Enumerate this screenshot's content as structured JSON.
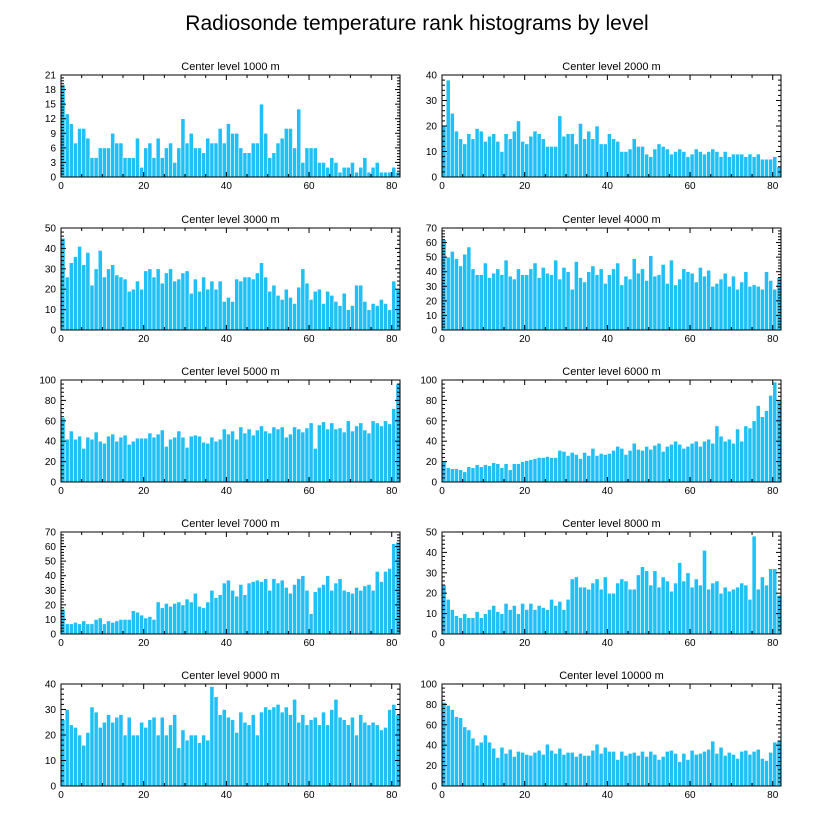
{
  "figure": {
    "title": "Radiosonde temperature rank histograms by level",
    "bar_color": "#1ec0f5",
    "bar_edge_color": "#ffffff",
    "axis_color": "#000000"
  },
  "chart_data": [
    {
      "type": "bar",
      "title": "Center level 1000 m",
      "xlim": [
        0,
        82
      ],
      "ylim": [
        0,
        21
      ],
      "xticks": [
        0,
        20,
        40,
        60,
        80
      ],
      "yticks": [
        0,
        3,
        6,
        9,
        12,
        15,
        18,
        21
      ],
      "x_start": 0,
      "values": [
        19,
        13,
        11,
        7,
        10,
        10,
        8,
        4,
        4,
        6,
        6,
        6,
        9,
        7,
        7,
        4,
        4,
        4,
        8,
        2,
        6,
        7,
        4,
        8,
        4,
        6,
        7,
        3,
        6,
        12,
        7,
        9,
        6,
        6,
        5,
        8,
        7,
        7,
        10,
        7,
        11,
        9,
        9,
        6,
        5,
        5,
        7,
        7,
        15,
        9,
        4,
        5,
        7,
        8,
        10,
        10,
        6,
        14,
        3,
        6,
        6,
        6,
        3,
        3,
        2,
        4,
        3,
        1,
        2,
        2,
        3,
        1,
        2,
        4,
        1,
        2,
        3,
        1,
        1,
        1,
        2,
        1
      ]
    },
    {
      "type": "bar",
      "title": "Center level 2000 m",
      "xlim": [
        0,
        82
      ],
      "ylim": [
        0,
        40
      ],
      "xticks": [
        0,
        20,
        40,
        60,
        80
      ],
      "yticks": [
        0,
        10,
        20,
        30,
        40
      ],
      "x_start": 0,
      "values": [
        20,
        38,
        25,
        18,
        15,
        13,
        17,
        15,
        19,
        18,
        14,
        16,
        17,
        14,
        10,
        17,
        15,
        18,
        22,
        14,
        13,
        16,
        18,
        17,
        15,
        12,
        12,
        12,
        24,
        16,
        17,
        17,
        13,
        21,
        15,
        18,
        15,
        20,
        13,
        13,
        17,
        15,
        14,
        10,
        10,
        11,
        15,
        12,
        12,
        9,
        8,
        11,
        13,
        12,
        11,
        9,
        10,
        11,
        10,
        8,
        9,
        11,
        10,
        9,
        10,
        11,
        10,
        8,
        10,
        8,
        9,
        9,
        9,
        8,
        9,
        8,
        9,
        7,
        7,
        7,
        8,
        4
      ]
    },
    {
      "type": "bar",
      "title": "Center level 3000 m",
      "xlim": [
        0,
        82
      ],
      "ylim": [
        0,
        50
      ],
      "xticks": [
        0,
        20,
        40,
        60,
        80
      ],
      "yticks": [
        0,
        10,
        20,
        30,
        40,
        50
      ],
      "x_start": 0,
      "values": [
        45,
        26,
        33,
        36,
        41,
        32,
        38,
        22,
        30,
        39,
        26,
        30,
        32,
        27,
        26,
        25,
        19,
        20,
        24,
        20,
        29,
        30,
        26,
        30,
        23,
        28,
        30,
        24,
        25,
        28,
        29,
        18,
        25,
        19,
        26,
        20,
        24,
        20,
        24,
        14,
        16,
        14,
        25,
        24,
        26,
        26,
        25,
        28,
        33,
        26,
        19,
        22,
        17,
        15,
        20,
        16,
        13,
        21,
        30,
        23,
        15,
        19,
        20,
        13,
        19,
        17,
        14,
        12,
        18,
        10,
        12,
        22,
        22,
        14,
        10,
        13,
        12,
        15,
        13,
        10,
        24,
        20
      ]
    },
    {
      "type": "bar",
      "title": "Center level 4000 m",
      "xlim": [
        0,
        82
      ],
      "ylim": [
        0,
        70
      ],
      "xticks": [
        0,
        20,
        40,
        60,
        80
      ],
      "yticks": [
        0,
        10,
        20,
        30,
        40,
        50,
        60,
        70
      ],
      "x_start": 0,
      "values": [
        62,
        50,
        54,
        49,
        44,
        52,
        57,
        42,
        38,
        38,
        46,
        36,
        39,
        42,
        38,
        48,
        37,
        35,
        42,
        38,
        38,
        42,
        46,
        36,
        43,
        39,
        38,
        48,
        35,
        43,
        40,
        28,
        47,
        36,
        33,
        40,
        44,
        38,
        42,
        32,
        38,
        42,
        46,
        31,
        37,
        35,
        49,
        39,
        42,
        34,
        51,
        37,
        38,
        45,
        32,
        48,
        31,
        35,
        42,
        40,
        39,
        33,
        43,
        37,
        41,
        30,
        32,
        35,
        39,
        30,
        37,
        28,
        33,
        40,
        30,
        31,
        30,
        28,
        40,
        34,
        28,
        36
      ]
    },
    {
      "type": "bar",
      "title": "Center level 5000 m",
      "xlim": [
        0,
        82
      ],
      "ylim": [
        0,
        100
      ],
      "xticks": [
        0,
        20,
        40,
        60,
        80
      ],
      "yticks": [
        0,
        20,
        40,
        60,
        80,
        100
      ],
      "x_start": 0,
      "values": [
        63,
        42,
        50,
        42,
        45,
        33,
        44,
        42,
        49,
        40,
        38,
        45,
        47,
        40,
        44,
        46,
        37,
        40,
        43,
        43,
        43,
        48,
        44,
        47,
        51,
        35,
        42,
        44,
        50,
        44,
        34,
        45,
        46,
        45,
        39,
        38,
        44,
        40,
        42,
        52,
        47,
        50,
        42,
        54,
        48,
        52,
        46,
        51,
        55,
        50,
        48,
        54,
        52,
        54,
        44,
        47,
        54,
        52,
        49,
        53,
        58,
        33,
        56,
        59,
        52,
        58,
        52,
        53,
        49,
        60,
        50,
        55,
        58,
        51,
        48,
        60,
        58,
        55,
        60,
        57,
        72,
        96
      ]
    },
    {
      "type": "bar",
      "title": "Center level 6000 m",
      "xlim": [
        0,
        82
      ],
      "ylim": [
        0,
        100
      ],
      "xticks": [
        0,
        20,
        40,
        60,
        80
      ],
      "yticks": [
        0,
        20,
        40,
        60,
        80,
        100
      ],
      "x_start": 0,
      "values": [
        20,
        14,
        13,
        13,
        12,
        10,
        15,
        14,
        17,
        15,
        17,
        16,
        19,
        18,
        14,
        18,
        12,
        18,
        18,
        20,
        21,
        22,
        23,
        24,
        24,
        25,
        24,
        24,
        31,
        30,
        26,
        29,
        27,
        23,
        29,
        26,
        33,
        26,
        28,
        27,
        28,
        31,
        35,
        33,
        27,
        31,
        38,
        32,
        31,
        35,
        32,
        36,
        38,
        30,
        35,
        37,
        40,
        37,
        33,
        35,
        38,
        40,
        35,
        40,
        42,
        38,
        55,
        45,
        40,
        42,
        38,
        52,
        40,
        55,
        53,
        60,
        75,
        64,
        70,
        85,
        98,
        80
      ]
    },
    {
      "type": "bar",
      "title": "Center level 7000 m",
      "xlim": [
        0,
        82
      ],
      "ylim": [
        0,
        70
      ],
      "xticks": [
        0,
        20,
        40,
        60,
        80
      ],
      "yticks": [
        0,
        10,
        20,
        30,
        40,
        50,
        60,
        70
      ],
      "x_start": 0,
      "values": [
        17,
        7,
        7,
        8,
        7,
        9,
        7,
        7,
        10,
        11,
        7,
        9,
        8,
        9,
        10,
        10,
        10,
        16,
        15,
        13,
        11,
        12,
        10,
        22,
        18,
        21,
        19,
        21,
        22,
        20,
        24,
        22,
        28,
        19,
        18,
        22,
        30,
        25,
        27,
        35,
        37,
        30,
        26,
        34,
        27,
        35,
        36,
        37,
        36,
        38,
        30,
        38,
        35,
        37,
        32,
        28,
        34,
        38,
        40,
        30,
        14,
        29,
        32,
        34,
        40,
        30,
        35,
        38,
        30,
        29,
        28,
        32,
        30,
        33,
        34,
        30,
        43,
        36,
        43,
        45,
        62,
        63
      ]
    },
    {
      "type": "bar",
      "title": "Center level 8000 m",
      "xlim": [
        0,
        82
      ],
      "ylim": [
        0,
        50
      ],
      "xticks": [
        0,
        20,
        40,
        60,
        80
      ],
      "yticks": [
        0,
        10,
        20,
        30,
        40,
        50
      ],
      "x_start": 0,
      "values": [
        24,
        17,
        12,
        9,
        8,
        10,
        8,
        8,
        11,
        8,
        10,
        12,
        14,
        11,
        10,
        15,
        12,
        14,
        10,
        15,
        12,
        15,
        12,
        14,
        13,
        12,
        17,
        14,
        16,
        12,
        17,
        27,
        28,
        23,
        23,
        22,
        25,
        27,
        22,
        28,
        20,
        20,
        25,
        27,
        26,
        22,
        22,
        29,
        33,
        31,
        24,
        31,
        23,
        28,
        26,
        21,
        25,
        35,
        26,
        30,
        23,
        27,
        24,
        41,
        22,
        25,
        26,
        20,
        23,
        21,
        22,
        23,
        25,
        24,
        17,
        48,
        22,
        28,
        24,
        32,
        32,
        19
      ]
    },
    {
      "type": "bar",
      "title": "Center level 9000 m",
      "xlim": [
        0,
        82
      ],
      "ylim": [
        0,
        40
      ],
      "xticks": [
        0,
        20,
        40,
        60,
        80
      ],
      "yticks": [
        0,
        10,
        20,
        30,
        40
      ],
      "x_start": 0,
      "values": [
        26,
        30,
        24,
        23,
        20,
        16,
        21,
        31,
        29,
        23,
        25,
        28,
        25,
        27,
        28,
        20,
        27,
        20,
        20,
        25,
        23,
        26,
        27,
        20,
        27,
        20,
        24,
        28,
        15,
        22,
        18,
        20,
        20,
        17,
        20,
        18,
        39,
        35,
        28,
        30,
        27,
        26,
        21,
        29,
        25,
        24,
        28,
        20,
        29,
        31,
        30,
        31,
        32,
        29,
        31,
        28,
        34,
        25,
        28,
        24,
        26,
        27,
        24,
        29,
        24,
        30,
        34,
        27,
        26,
        24,
        27,
        20,
        28,
        25,
        24,
        25,
        24,
        22,
        23,
        30,
        32,
        28
      ]
    },
    {
      "type": "bar",
      "title": "Center level 10000 m",
      "xlim": [
        0,
        82
      ],
      "ylim": [
        0,
        100
      ],
      "xticks": [
        0,
        20,
        40,
        60,
        80
      ],
      "yticks": [
        0,
        20,
        40,
        60,
        80,
        100
      ],
      "x_start": 0,
      "values": [
        82,
        79,
        75,
        68,
        67,
        58,
        55,
        47,
        40,
        43,
        50,
        43,
        37,
        28,
        38,
        32,
        36,
        29,
        34,
        33,
        31,
        30,
        33,
        35,
        31,
        41,
        35,
        32,
        37,
        31,
        33,
        33,
        29,
        32,
        30,
        30,
        35,
        41,
        32,
        38,
        34,
        34,
        26,
        34,
        30,
        32,
        33,
        30,
        34,
        29,
        34,
        31,
        26,
        29,
        34,
        35,
        32,
        24,
        32,
        26,
        35,
        31,
        32,
        34,
        36,
        44,
        32,
        38,
        30,
        33,
        31,
        27,
        34,
        35,
        31,
        34,
        36,
        27,
        25,
        33,
        43,
        45
      ]
    }
  ]
}
